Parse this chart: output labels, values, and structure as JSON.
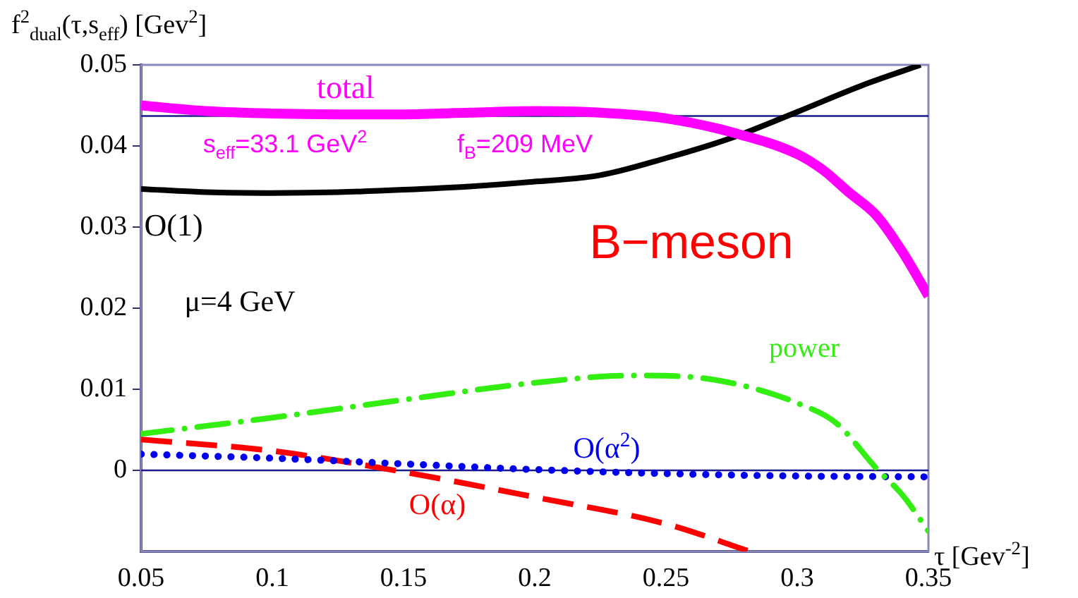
{
  "chart_data": {
    "type": "line",
    "xlabel": "τ [Gev$^{-2}$]",
    "ylabel": "f$^{2}$$_{dual}$(τ,s$_{eff}$) [Gev$^{2}$]",
    "xlim": [
      0.05,
      0.35
    ],
    "xticks": [
      0.05,
      0.1,
      0.15,
      0.2,
      0.25,
      0.3,
      0.35
    ],
    "ylim": [
      -0.01,
      0.05
    ],
    "yticks": [
      0,
      0.01,
      0.02,
      0.03,
      0.04,
      0.05
    ],
    "grid": false,
    "legend": false,
    "marker": "none",
    "series": [
      {
        "name": "total",
        "color": "#ff00ff",
        "line_style": "solid",
        "x": [
          0.05,
          0.075,
          0.1,
          0.125,
          0.15,
          0.175,
          0.2,
          0.225,
          0.25,
          0.275,
          0.3,
          0.31,
          0.32,
          0.33,
          0.34,
          0.35
        ],
        "values": [
          0.045,
          0.0443,
          0.044,
          0.0439,
          0.0439,
          0.0441,
          0.0443,
          0.0441,
          0.0434,
          0.0417,
          0.039,
          0.037,
          0.0342,
          0.0315,
          0.027,
          0.0215
        ]
      },
      {
        "name": "O(1)",
        "color": "#000000",
        "line_style": "solid",
        "x": [
          0.05,
          0.075,
          0.1,
          0.125,
          0.15,
          0.175,
          0.2,
          0.225,
          0.25,
          0.275,
          0.3,
          0.325,
          0.347
        ],
        "values": [
          0.0347,
          0.0343,
          0.0342,
          0.0343,
          0.0346,
          0.035,
          0.0356,
          0.0364,
          0.0385,
          0.041,
          0.0442,
          0.0475,
          0.05
        ]
      },
      {
        "name": "power",
        "color": "#33ee11",
        "line_style": "dashdot",
        "x": [
          0.05,
          0.1,
          0.15,
          0.2,
          0.237,
          0.26,
          0.28,
          0.3,
          0.315,
          0.33,
          0.34,
          0.35
        ],
        "values": [
          0.0045,
          0.0065,
          0.0087,
          0.0108,
          0.0117,
          0.0115,
          0.0104,
          0.0083,
          0.0058,
          0.0003,
          -0.003,
          -0.0075
        ]
      },
      {
        "name": "O(α$^{2}$)",
        "color": "#0000ee",
        "line_style": "dotted",
        "x": [
          0.05,
          0.1,
          0.15,
          0.2,
          0.25,
          0.3,
          0.35
        ],
        "values": [
          0.002,
          0.0015,
          0.0008,
          0.0001,
          -0.0004,
          -0.0007,
          -0.0008
        ]
      },
      {
        "name": "O(α)",
        "color": "#ff0000",
        "line_style": "dashed",
        "x": [
          0.05,
          0.1,
          0.15,
          0.2,
          0.25,
          0.282
        ],
        "values": [
          0.0038,
          0.0024,
          -0.0002,
          -0.0033,
          -0.0066,
          -0.01
        ]
      }
    ],
    "ref_lines": [
      {
        "axis": "y",
        "value": 0.0437,
        "color": "#1a1a8c"
      },
      {
        "axis": "y",
        "value": 0,
        "color": "#1a1a8c"
      }
    ],
    "annotations": [
      "s$_{eff}$=33.1 GeV$^{2}$",
      "f$_{B}$=209 MeV",
      "B−meson",
      "μ=4 GeV"
    ]
  }
}
